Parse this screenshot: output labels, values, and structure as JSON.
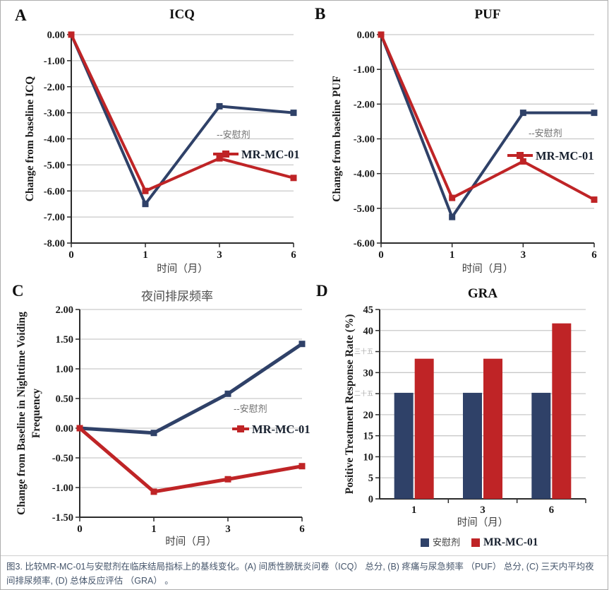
{
  "caption": {
    "text": "图3. 比较MR-MC-01与安慰剂在临床结局指标上的基线变化。(A) 间质性膀胱炎问卷（ICQ） 总分, (B) 疼痛与尿急频率 （PUF） 总分, (C) 三天内平均夜间排尿频率, (D) 总体反应评估 （GRA） 。"
  },
  "colors": {
    "placebo": "#2f4168",
    "treatment": "#bf2426",
    "grid": "#c9c9c9",
    "axis": "#2b2b2b",
    "tick_text": "#1a1a1a",
    "legend_gray": "#6e6e6e",
    "faint": "#adadad",
    "caption": "#44546a"
  },
  "chart_data": [
    {
      "panel": "A",
      "type": "line",
      "title": "ICQ",
      "categories": [
        "0",
        "1",
        "3",
        "6"
      ],
      "series": [
        {
          "name": "安慰剂",
          "key": "placebo",
          "values": [
            0.0,
            -6.5,
            -2.75,
            -3.0
          ]
        },
        {
          "name": "MR-MC-01",
          "key": "treatment",
          "values": [
            0.0,
            -6.0,
            -4.75,
            -5.5
          ]
        }
      ],
      "ylabel": "Change from baseline ICQ",
      "xlabel": "时间（月）",
      "ylim": [
        -8,
        0
      ],
      "ytick_step": 1,
      "ytick_decimals": 2,
      "grid": true,
      "legend": {
        "placebo_label": "--安慰剂",
        "treatment_label": "MR-MC-01",
        "position": "inside-right"
      }
    },
    {
      "panel": "B",
      "type": "line",
      "title": "PUF",
      "categories": [
        "0",
        "1",
        "3",
        "6"
      ],
      "series": [
        {
          "name": "安慰剂",
          "key": "placebo",
          "values": [
            0.0,
            -5.25,
            -2.25,
            -2.25
          ]
        },
        {
          "name": "MR-MC-01",
          "key": "treatment",
          "values": [
            0.0,
            -4.7,
            -3.65,
            -4.75
          ]
        }
      ],
      "ylabel": "Change from baseline PUF",
      "xlabel": "时间（月）",
      "ylim": [
        -6,
        0
      ],
      "ytick_step": 1,
      "ytick_decimals": 2,
      "grid": true,
      "legend": {
        "placebo_label": "--安慰剂",
        "treatment_label": "MR-MC-01",
        "position": "inside-right"
      }
    },
    {
      "panel": "C",
      "type": "line",
      "title": "夜间排尿频率",
      "categories": [
        "0",
        "1",
        "3",
        "6"
      ],
      "series": [
        {
          "name": "安慰剂",
          "key": "placebo",
          "values": [
            0.0,
            -0.08,
            0.58,
            1.42
          ]
        },
        {
          "name": "MR-MC-01",
          "key": "treatment",
          "values": [
            0.0,
            -1.07,
            -0.86,
            -0.64
          ]
        }
      ],
      "ylabel": [
        "Change from Baseline in Nighttime Voiding",
        "Frequency"
      ],
      "xlabel": "时间（月）",
      "ylim": [
        -1.5,
        2
      ],
      "ytick_step": 0.5,
      "ytick_decimals": 2,
      "grid": true,
      "legend": {
        "placebo_label": "--安慰剂",
        "treatment_label": "MR-MC-01",
        "position": "inside-right"
      }
    },
    {
      "panel": "D",
      "type": "bar",
      "title": "GRA",
      "categories": [
        "1",
        "3",
        "6"
      ],
      "series": [
        {
          "name": "安慰剂",
          "key": "placebo",
          "values": [
            25.2,
            25.2,
            25.2
          ]
        },
        {
          "name": "MR-MC-01",
          "key": "treatment",
          "values": [
            33.3,
            33.3,
            41.7
          ]
        }
      ],
      "ylabel": "Positive Treatment Response Rate (%)",
      "xlabel": "时间（月）",
      "ylim": [
        0,
        45
      ],
      "ytick_step": 5,
      "ytick_decimals": 0,
      "grid": true,
      "ytick_overrides": [
        {
          "value": 35,
          "text": "三十五"
        },
        {
          "value": 25,
          "text": "二十五"
        }
      ],
      "legend": {
        "placebo_label": "安慰剂",
        "treatment_label": "MR-MC-01",
        "position": "bottom"
      }
    }
  ]
}
